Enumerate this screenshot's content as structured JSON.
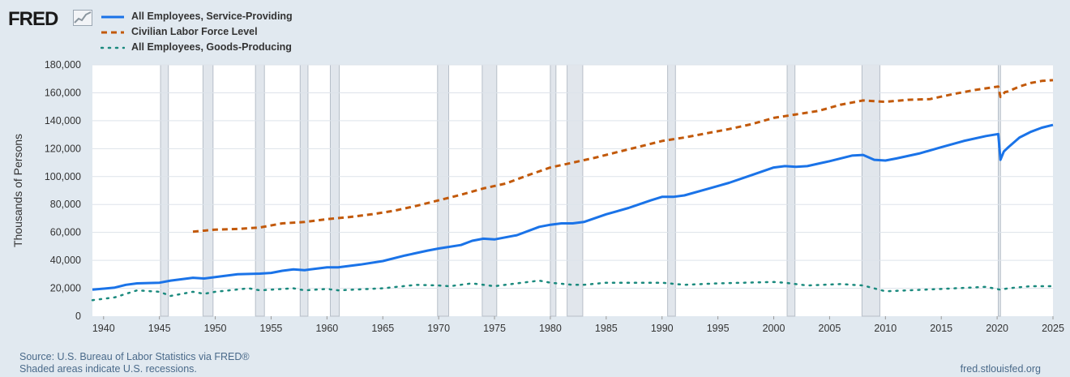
{
  "brand": {
    "logo_text": "FRED",
    "logo_icon": "trend-chart-icon"
  },
  "footer": {
    "source": "Source: U.S. Bureau of Labor Statistics via FRED®",
    "recession_note": "Shaded areas indicate U.S. recessions.",
    "site": "fred.stlouisfed.org"
  },
  "colors": {
    "background": "#e1e9f0",
    "plot_bg": "#ffffff",
    "grid": "#dde3ea",
    "recession": "#e1e6ec",
    "recession_edge": "#b6bec8"
  },
  "chart_data": {
    "type": "line",
    "ylabel": "Thousands of Persons",
    "xlabel": "",
    "xlim": [
      1939,
      2025
    ],
    "ylim": [
      0,
      180000
    ],
    "x_ticks": [
      "1940",
      "1945",
      "1950",
      "1955",
      "1960",
      "1965",
      "1970",
      "1975",
      "1980",
      "1985",
      "1990",
      "1995",
      "2000",
      "2005",
      "2010",
      "2015",
      "2020",
      "2025"
    ],
    "y_ticks": [
      "0",
      "20,000",
      "40,000",
      "60,000",
      "80,000",
      "100,000",
      "120,000",
      "140,000",
      "160,000",
      "180,000"
    ],
    "grid": "horizontal",
    "legend_position": "top-left",
    "recessions": [
      [
        1945.1,
        1945.8
      ],
      [
        1948.9,
        1949.8
      ],
      [
        1953.6,
        1954.4
      ],
      [
        1957.6,
        1958.3
      ],
      [
        1960.3,
        1961.1
      ],
      [
        1969.9,
        1970.9
      ],
      [
        1973.9,
        1975.2
      ],
      [
        1980.0,
        1980.5
      ],
      [
        1981.5,
        1982.9
      ],
      [
        1990.5,
        1991.2
      ],
      [
        2001.2,
        2001.9
      ],
      [
        2007.9,
        2009.5
      ],
      [
        2020.1,
        2020.3
      ]
    ],
    "series": [
      {
        "name": "All Employees, Service-Providing",
        "color": "#1a73e8",
        "style": "solid",
        "points": [
          [
            1939,
            19000
          ],
          [
            1941,
            20500
          ],
          [
            1942,
            22500
          ],
          [
            1943,
            23500
          ],
          [
            1945,
            24000
          ],
          [
            1946,
            25500
          ],
          [
            1948,
            27500
          ],
          [
            1949,
            27000
          ],
          [
            1950,
            28000
          ],
          [
            1952,
            30000
          ],
          [
            1954,
            30500
          ],
          [
            1955,
            31000
          ],
          [
            1956,
            32500
          ],
          [
            1957,
            33500
          ],
          [
            1958,
            33000
          ],
          [
            1960,
            35000
          ],
          [
            1961,
            35000
          ],
          [
            1963,
            37000
          ],
          [
            1965,
            39500
          ],
          [
            1967,
            43500
          ],
          [
            1969,
            47000
          ],
          [
            1970,
            48500
          ],
          [
            1972,
            51000
          ],
          [
            1973,
            54000
          ],
          [
            1974,
            55500
          ],
          [
            1975,
            55000
          ],
          [
            1977,
            58000
          ],
          [
            1979,
            64000
          ],
          [
            1980,
            65500
          ],
          [
            1981,
            66500
          ],
          [
            1982,
            66500
          ],
          [
            1983,
            67500
          ],
          [
            1985,
            73000
          ],
          [
            1987,
            77500
          ],
          [
            1989,
            83000
          ],
          [
            1990,
            85500
          ],
          [
            1991,
            85500
          ],
          [
            1992,
            86500
          ],
          [
            1994,
            91000
          ],
          [
            1996,
            95500
          ],
          [
            1998,
            101000
          ],
          [
            2000,
            106500
          ],
          [
            2001,
            107500
          ],
          [
            2002,
            107000
          ],
          [
            2003,
            107500
          ],
          [
            2005,
            111000
          ],
          [
            2007,
            115000
          ],
          [
            2008,
            115500
          ],
          [
            2009,
            112000
          ],
          [
            2010,
            111500
          ],
          [
            2011,
            113000
          ],
          [
            2013,
            116500
          ],
          [
            2015,
            121000
          ],
          [
            2017,
            125500
          ],
          [
            2019,
            129000
          ],
          [
            2020.1,
            130500
          ],
          [
            2020.3,
            112000
          ],
          [
            2020.6,
            118000
          ],
          [
            2021,
            121000
          ],
          [
            2022,
            128000
          ],
          [
            2023,
            132000
          ],
          [
            2024,
            135000
          ],
          [
            2025,
            137000
          ]
        ]
      },
      {
        "name": "Civilian Labor Force Level",
        "color": "#c2590a",
        "style": "dash",
        "points": [
          [
            1948,
            60500
          ],
          [
            1950,
            62000
          ],
          [
            1952,
            62500
          ],
          [
            1954,
            63500
          ],
          [
            1956,
            66500
          ],
          [
            1958,
            67500
          ],
          [
            1960,
            69500
          ],
          [
            1962,
            71000
          ],
          [
            1964,
            73000
          ],
          [
            1966,
            75500
          ],
          [
            1968,
            79000
          ],
          [
            1970,
            83000
          ],
          [
            1972,
            87000
          ],
          [
            1974,
            91500
          ],
          [
            1976,
            95000
          ],
          [
            1978,
            101000
          ],
          [
            1980,
            106500
          ],
          [
            1982,
            110000
          ],
          [
            1984,
            113500
          ],
          [
            1986,
            117500
          ],
          [
            1988,
            121500
          ],
          [
            1990,
            125500
          ],
          [
            1992,
            128000
          ],
          [
            1994,
            131000
          ],
          [
            1996,
            134000
          ],
          [
            1998,
            137500
          ],
          [
            2000,
            142000
          ],
          [
            2002,
            144500
          ],
          [
            2004,
            147000
          ],
          [
            2006,
            151500
          ],
          [
            2008,
            154500
          ],
          [
            2009,
            154000
          ],
          [
            2010,
            153500
          ],
          [
            2012,
            155000
          ],
          [
            2014,
            155500
          ],
          [
            2016,
            159000
          ],
          [
            2018,
            162000
          ],
          [
            2020.1,
            164500
          ],
          [
            2020.3,
            157000
          ],
          [
            2020.7,
            160500
          ],
          [
            2021,
            161000
          ],
          [
            2022,
            164500
          ],
          [
            2023,
            167000
          ],
          [
            2024,
            168500
          ],
          [
            2025,
            169000
          ]
        ]
      },
      {
        "name": "All Employees, Goods-Producing",
        "color": "#1b8a7e",
        "style": "dot",
        "points": [
          [
            1939,
            11500
          ],
          [
            1941,
            13500
          ],
          [
            1943,
            18500
          ],
          [
            1945,
            17500
          ],
          [
            1946,
            14500
          ],
          [
            1948,
            17500
          ],
          [
            1949,
            16000
          ],
          [
            1950,
            17500
          ],
          [
            1953,
            20000
          ],
          [
            1954,
            18500
          ],
          [
            1957,
            20000
          ],
          [
            1958,
            18500
          ],
          [
            1960,
            19500
          ],
          [
            1961,
            18500
          ],
          [
            1965,
            20000
          ],
          [
            1968,
            22500
          ],
          [
            1970,
            22000
          ],
          [
            1971,
            21500
          ],
          [
            1973,
            23500
          ],
          [
            1975,
            21500
          ],
          [
            1979,
            25500
          ],
          [
            1980,
            24000
          ],
          [
            1982,
            22500
          ],
          [
            1983,
            22500
          ],
          [
            1985,
            24000
          ],
          [
            1990,
            24000
          ],
          [
            1992,
            22500
          ],
          [
            1995,
            23500
          ],
          [
            2000,
            24500
          ],
          [
            2001,
            24000
          ],
          [
            2003,
            22000
          ],
          [
            2006,
            23000
          ],
          [
            2008,
            22000
          ],
          [
            2010,
            17800
          ],
          [
            2012,
            18500
          ],
          [
            2015,
            19500
          ],
          [
            2019,
            21000
          ],
          [
            2020.3,
            19000
          ],
          [
            2021,
            20000
          ],
          [
            2023,
            21500
          ],
          [
            2025,
            21500
          ]
        ]
      }
    ]
  }
}
